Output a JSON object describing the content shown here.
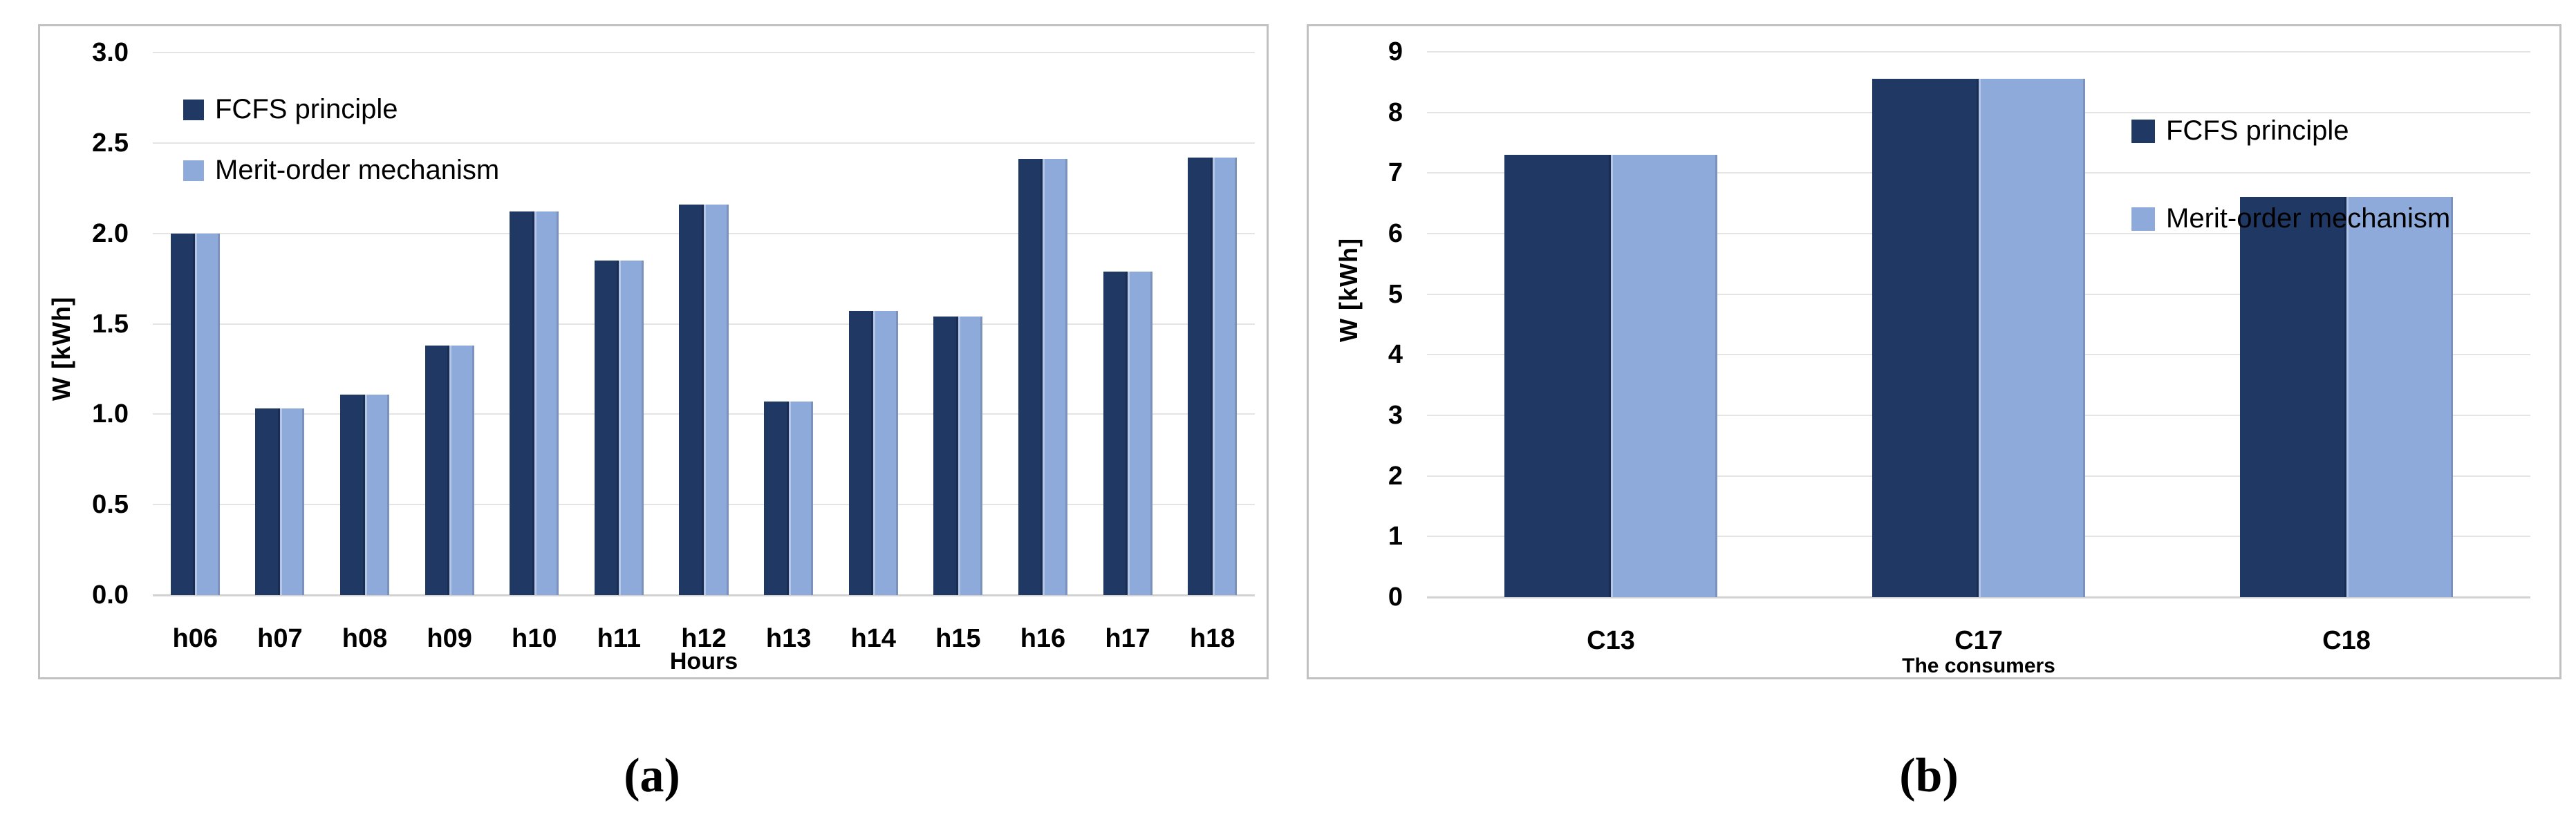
{
  "figure": {
    "caption_a": "(a)",
    "caption_b": "(b)"
  },
  "colors": {
    "fcfs": "#1F3864",
    "merit": "#8EAADB",
    "gridline": "#E4E4E4",
    "zero_axis": "#D2D2D2",
    "panel_border": "#C1C1C1",
    "text": "#000000"
  },
  "chart_data": [
    {
      "id": "a",
      "type": "bar",
      "title": "",
      "xlabel": "Hours",
      "ylabel": "W  [kWh]",
      "ylim": [
        0,
        3
      ],
      "ytick_step": 0.5,
      "ytick_labels": [
        "0.0",
        "0.5",
        "1.0",
        "1.5",
        "2.0",
        "2.5",
        "3.0"
      ],
      "grid": true,
      "legend_position": "top-left",
      "categories": [
        "h06",
        "h07",
        "h08",
        "h09",
        "h10",
        "h11",
        "h12",
        "h13",
        "h14",
        "h15",
        "h16",
        "h17",
        "h18"
      ],
      "series": [
        {
          "name": "FCFS principle",
          "color": "#1F3864",
          "values": [
            2.0,
            1.03,
            1.11,
            1.38,
            2.12,
            1.85,
            2.16,
            1.07,
            1.57,
            1.54,
            2.41,
            1.79,
            2.42
          ]
        },
        {
          "name": "Merit-order mechanism",
          "color": "#8EAADB",
          "values": [
            2.0,
            1.03,
            1.11,
            1.38,
            2.12,
            1.85,
            2.16,
            1.07,
            1.57,
            1.54,
            2.41,
            1.79,
            2.42
          ]
        }
      ]
    },
    {
      "id": "b",
      "type": "bar",
      "title": "",
      "xlabel": "The consumers",
      "ylabel": "W  [kWh]",
      "ylim": [
        0,
        9
      ],
      "ytick_step": 1,
      "ytick_labels": [
        "0",
        "1",
        "2",
        "3",
        "4",
        "5",
        "6",
        "7",
        "8",
        "9"
      ],
      "grid": true,
      "legend_position": "top-right",
      "categories": [
        "C13",
        "C17",
        "C18"
      ],
      "series": [
        {
          "name": "FCFS principle",
          "color": "#1F3864",
          "values": [
            7.3,
            8.55,
            6.6
          ]
        },
        {
          "name": "Merit-order mechanism",
          "color": "#8EAADB",
          "values": [
            7.3,
            8.55,
            6.6
          ]
        }
      ]
    }
  ]
}
